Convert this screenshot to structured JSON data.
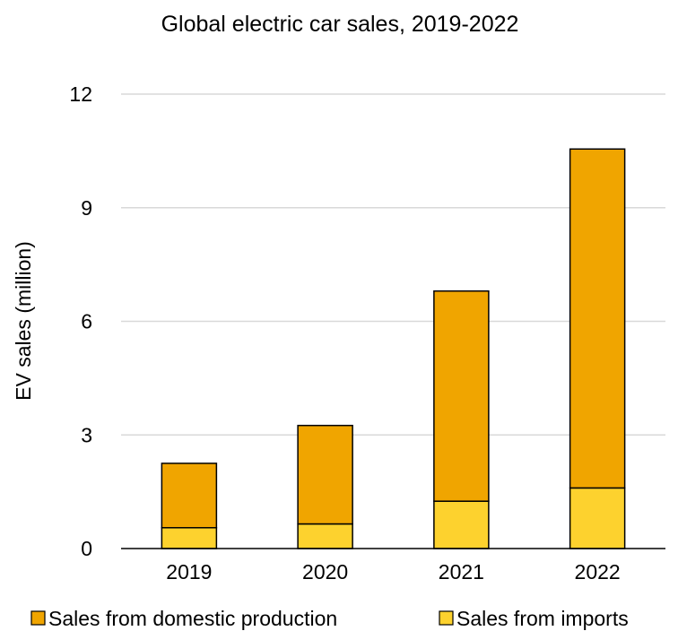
{
  "chart_data": {
    "type": "bar",
    "stacked": true,
    "title": "Global electric car sales, 2019-2022",
    "xlabel": "",
    "ylabel": "EV sales (million)",
    "categories": [
      "2019",
      "2020",
      "2021",
      "2022"
    ],
    "ylim": [
      0,
      12
    ],
    "yticks": [
      0,
      3,
      6,
      9,
      12
    ],
    "grid": true,
    "legend_position": "bottom",
    "series": [
      {
        "name": "Sales from imports",
        "values": [
          0.55,
          0.65,
          1.25,
          1.6
        ],
        "color": "#FDD22E"
      },
      {
        "name": "Sales from domestic production",
        "values": [
          1.7,
          2.6,
          5.55,
          8.95
        ],
        "color": "#F0A500"
      }
    ],
    "legend_order": [
      "Sales from domestic production",
      "Sales from imports"
    ]
  }
}
